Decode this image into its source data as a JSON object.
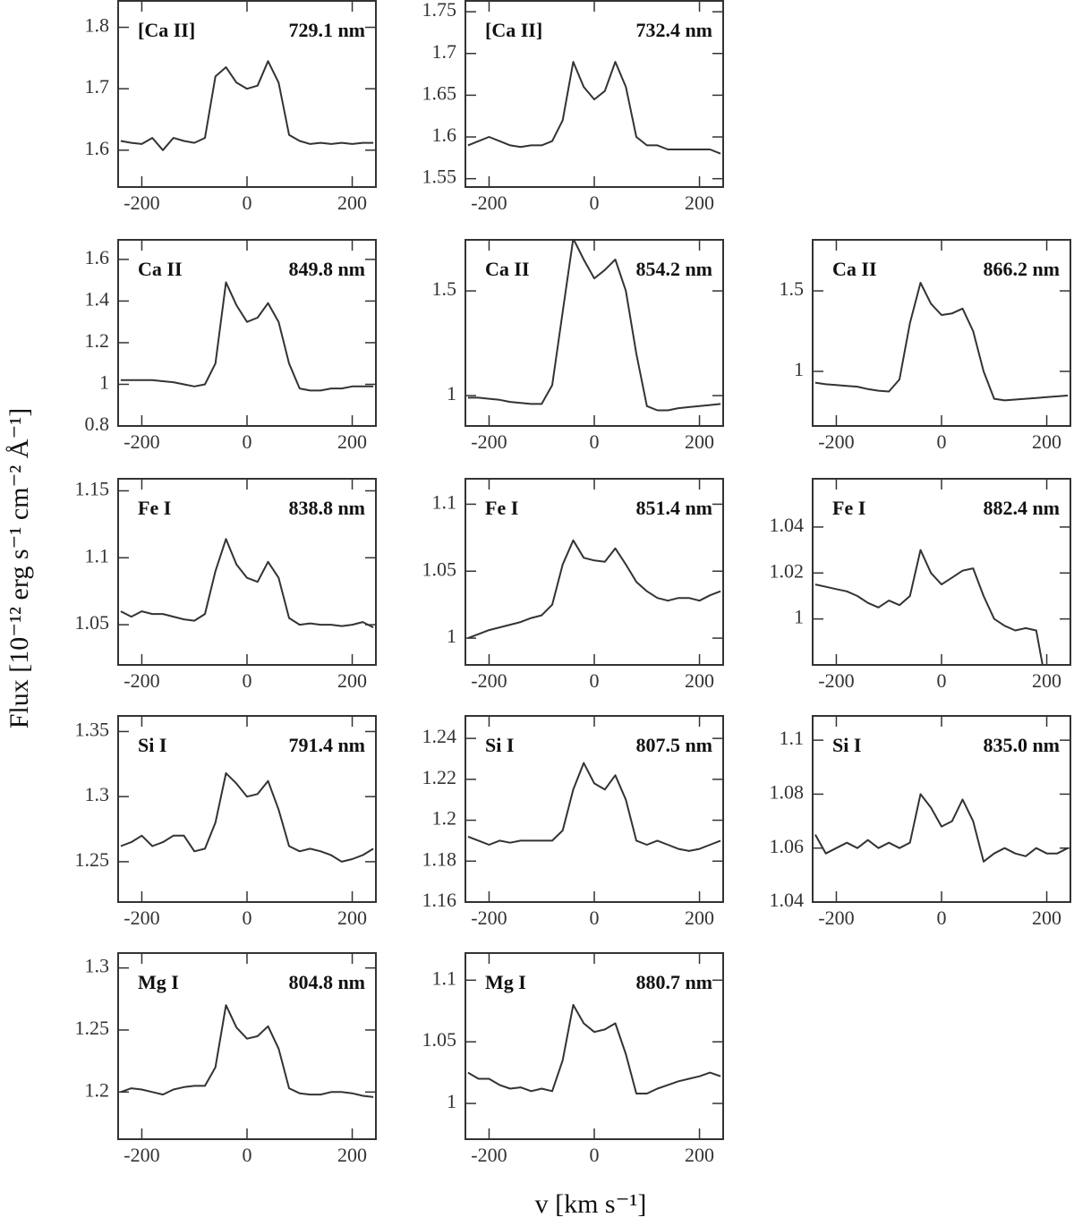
{
  "xlabel": "v [km s⁻¹]",
  "ylabel": "Flux [10⁻¹² erg s⁻¹ cm⁻² Å⁻¹]",
  "chart_data": [
    {
      "type": "line",
      "annotations": [
        "[Ca II]",
        "729.1 nm"
      ],
      "color": "#333333",
      "xlim": [
        -245,
        245
      ],
      "xticks": [
        -200,
        0,
        200
      ],
      "ylim": [
        1.54,
        1.843
      ],
      "yticks": [
        1.6,
        1.7,
        1.8
      ],
      "x": [
        -240,
        -220,
        -200,
        -180,
        -160,
        -140,
        -120,
        -100,
        -80,
        -60,
        -40,
        -20,
        0,
        20,
        40,
        60,
        80,
        100,
        120,
        140,
        160,
        180,
        200,
        220,
        240
      ],
      "values": [
        1.615,
        1.612,
        1.61,
        1.62,
        1.6,
        1.62,
        1.615,
        1.612,
        1.62,
        1.72,
        1.735,
        1.71,
        1.7,
        1.705,
        1.745,
        1.71,
        1.625,
        1.615,
        1.61,
        1.612,
        1.61,
        1.612,
        1.61,
        1.612,
        1.612
      ]
    },
    {
      "type": "line",
      "annotations": [
        "[Ca II]",
        "732.4 nm"
      ],
      "color": "#333333",
      "xlim": [
        -245,
        245
      ],
      "xticks": [
        -200,
        0,
        200
      ],
      "ylim": [
        1.54,
        1.763
      ],
      "yticks": [
        1.55,
        1.6,
        1.65,
        1.7,
        1.75
      ],
      "x": [
        -240,
        -220,
        -200,
        -180,
        -160,
        -140,
        -120,
        -100,
        -80,
        -60,
        -40,
        -20,
        0,
        20,
        40,
        60,
        80,
        100,
        120,
        140,
        160,
        180,
        200,
        220,
        240
      ],
      "values": [
        1.59,
        1.595,
        1.6,
        1.595,
        1.59,
        1.588,
        1.59,
        1.59,
        1.595,
        1.62,
        1.69,
        1.66,
        1.645,
        1.655,
        1.69,
        1.66,
        1.6,
        1.59,
        1.59,
        1.585,
        1.585,
        1.585,
        1.585,
        1.585,
        1.58
      ]
    },
    {
      "type": "line",
      "annotations": [
        "Ca II",
        "849.8 nm"
      ],
      "color": "#333333",
      "xlim": [
        -245,
        245
      ],
      "xticks": [
        -200,
        0,
        200
      ],
      "ylim": [
        0.8,
        1.694
      ],
      "yticks": [
        0.8,
        1,
        1.2,
        1.4,
        1.6
      ],
      "x": [
        -240,
        -220,
        -200,
        -180,
        -160,
        -140,
        -120,
        -100,
        -80,
        -60,
        -40,
        -20,
        0,
        20,
        40,
        60,
        80,
        100,
        120,
        140,
        160,
        180,
        200,
        220,
        240
      ],
      "values": [
        1.02,
        1.02,
        1.02,
        1.02,
        1.015,
        1.01,
        1.0,
        0.99,
        1.0,
        1.1,
        1.49,
        1.38,
        1.3,
        1.32,
        1.39,
        1.3,
        1.1,
        0.98,
        0.97,
        0.97,
        0.98,
        0.98,
        0.99,
        0.99,
        0.99
      ]
    },
    {
      "type": "line",
      "annotations": [
        "Ca II",
        "854.2 nm"
      ],
      "color": "#333333",
      "xlim": [
        -245,
        245
      ],
      "xticks": [
        -200,
        0,
        200
      ],
      "ylim": [
        0.855,
        1.744
      ],
      "yticks": [
        1,
        1.5
      ],
      "x": [
        -240,
        -220,
        -200,
        -180,
        -160,
        -140,
        -120,
        -100,
        -80,
        -60,
        -40,
        -20,
        0,
        20,
        40,
        60,
        80,
        100,
        120,
        140,
        160,
        180,
        200,
        220,
        240
      ],
      "values": [
        0.99,
        0.99,
        0.985,
        0.98,
        0.97,
        0.965,
        0.96,
        0.96,
        1.05,
        1.4,
        1.75,
        1.65,
        1.56,
        1.6,
        1.65,
        1.5,
        1.2,
        0.95,
        0.93,
        0.93,
        0.94,
        0.945,
        0.95,
        0.955,
        0.96
      ]
    },
    {
      "type": "line",
      "annotations": [
        "Ca II",
        "866.2 nm"
      ],
      "color": "#333333",
      "xlim": [
        -245,
        245
      ],
      "xticks": [
        -200,
        0,
        200
      ],
      "ylim": [
        0.661,
        1.817
      ],
      "yticks": [
        1,
        1.5
      ],
      "x": [
        -240,
        -220,
        -200,
        -180,
        -160,
        -140,
        -120,
        -100,
        -80,
        -60,
        -40,
        -20,
        0,
        20,
        40,
        60,
        80,
        100,
        120,
        140,
        160,
        180,
        200,
        220,
        240
      ],
      "values": [
        0.93,
        0.92,
        0.915,
        0.91,
        0.905,
        0.89,
        0.88,
        0.875,
        0.95,
        1.3,
        1.55,
        1.42,
        1.35,
        1.36,
        1.39,
        1.25,
        1.0,
        0.83,
        0.82,
        0.825,
        0.83,
        0.835,
        0.84,
        0.845,
        0.85
      ]
    },
    {
      "type": "line",
      "annotations": [
        "Fe I",
        "838.8 nm"
      ],
      "color": "#333333",
      "xlim": [
        -245,
        245
      ],
      "xticks": [
        -200,
        0,
        200
      ],
      "ylim": [
        1.02,
        1.159
      ],
      "yticks": [
        1.05,
        1.1,
        1.15
      ],
      "x": [
        -240,
        -220,
        -200,
        -180,
        -160,
        -140,
        -120,
        -100,
        -80,
        -60,
        -40,
        -20,
        0,
        20,
        40,
        60,
        80,
        100,
        120,
        140,
        160,
        180,
        200,
        220,
        240
      ],
      "values": [
        1.06,
        1.056,
        1.06,
        1.058,
        1.058,
        1.056,
        1.054,
        1.053,
        1.058,
        1.09,
        1.114,
        1.095,
        1.085,
        1.082,
        1.097,
        1.085,
        1.055,
        1.05,
        1.051,
        1.05,
        1.05,
        1.049,
        1.05,
        1.052,
        1.048
      ]
    },
    {
      "type": "line",
      "annotations": [
        "Fe I",
        "851.4 nm"
      ],
      "color": "#333333",
      "xlim": [
        -245,
        245
      ],
      "xticks": [
        -200,
        0,
        200
      ],
      "ylim": [
        0.98,
        1.119
      ],
      "yticks": [
        1,
        1.05,
        1.1
      ],
      "x": [
        -240,
        -220,
        -200,
        -180,
        -160,
        -140,
        -120,
        -100,
        -80,
        -60,
        -40,
        -20,
        0,
        20,
        40,
        60,
        80,
        100,
        120,
        140,
        160,
        180,
        200,
        220,
        240
      ],
      "values": [
        1.0,
        1.003,
        1.006,
        1.008,
        1.01,
        1.012,
        1.015,
        1.017,
        1.025,
        1.055,
        1.073,
        1.06,
        1.058,
        1.057,
        1.067,
        1.055,
        1.042,
        1.035,
        1.03,
        1.028,
        1.03,
        1.03,
        1.028,
        1.032,
        1.035
      ]
    },
    {
      "type": "line",
      "annotations": [
        "Fe I",
        "882.4 nm"
      ],
      "color": "#333333",
      "xlim": [
        -245,
        245
      ],
      "xticks": [
        -200,
        0,
        200
      ],
      "ylim": [
        0.98,
        1.061
      ],
      "yticks": [
        1,
        1.02,
        1.04
      ],
      "x": [
        -240,
        -220,
        -200,
        -180,
        -160,
        -140,
        -120,
        -100,
        -80,
        -60,
        -40,
        -20,
        0,
        20,
        40,
        60,
        80,
        100,
        120,
        140,
        160,
        180,
        200,
        220,
        240
      ],
      "values": [
        1.015,
        1.014,
        1.013,
        1.012,
        1.01,
        1.007,
        1.005,
        1.008,
        1.006,
        1.01,
        1.03,
        1.02,
        1.015,
        1.018,
        1.021,
        1.022,
        1.01,
        1.0,
        0.997,
        0.995,
        0.996,
        0.995,
        0.97,
        null,
        null
      ]
    },
    {
      "type": "line",
      "annotations": [
        "Si I",
        "791.4 nm"
      ],
      "color": "#333333",
      "xlim": [
        -245,
        245
      ],
      "xticks": [
        -200,
        0,
        200
      ],
      "ylim": [
        1.219,
        1.362
      ],
      "yticks": [
        1.25,
        1.3,
        1.35
      ],
      "x": [
        -240,
        -220,
        -200,
        -180,
        -160,
        -140,
        -120,
        -100,
        -80,
        -60,
        -40,
        -20,
        0,
        20,
        40,
        60,
        80,
        100,
        120,
        140,
        160,
        180,
        200,
        220,
        240
      ],
      "values": [
        1.262,
        1.265,
        1.27,
        1.262,
        1.265,
        1.27,
        1.27,
        1.258,
        1.26,
        1.28,
        1.318,
        1.31,
        1.3,
        1.302,
        1.312,
        1.29,
        1.262,
        1.258,
        1.26,
        1.258,
        1.255,
        1.25,
        1.252,
        1.255,
        1.26
      ]
    },
    {
      "type": "line",
      "annotations": [
        "Si I",
        "807.5 nm"
      ],
      "color": "#333333",
      "xlim": [
        -245,
        245
      ],
      "xticks": [
        -200,
        0,
        200
      ],
      "ylim": [
        1.16,
        1.251
      ],
      "yticks": [
        1.16,
        1.18,
        1.2,
        1.22,
        1.24
      ],
      "x": [
        -240,
        -220,
        -200,
        -180,
        -160,
        -140,
        -120,
        -100,
        -80,
        -60,
        -40,
        -20,
        0,
        20,
        40,
        60,
        80,
        100,
        120,
        140,
        160,
        180,
        200,
        220,
        240
      ],
      "values": [
        1.192,
        1.19,
        1.188,
        1.19,
        1.189,
        1.19,
        1.19,
        1.19,
        1.19,
        1.195,
        1.215,
        1.228,
        1.218,
        1.215,
        1.222,
        1.21,
        1.19,
        1.188,
        1.19,
        1.188,
        1.186,
        1.185,
        1.186,
        1.188,
        1.19
      ]
    },
    {
      "type": "line",
      "annotations": [
        "Si I",
        "835.0 nm"
      ],
      "color": "#333333",
      "xlim": [
        -245,
        245
      ],
      "xticks": [
        -200,
        0,
        200
      ],
      "ylim": [
        1.04,
        1.109
      ],
      "yticks": [
        1.04,
        1.06,
        1.08,
        1.1
      ],
      "x": [
        -240,
        -220,
        -200,
        -180,
        -160,
        -140,
        -120,
        -100,
        -80,
        -60,
        -40,
        -20,
        0,
        20,
        40,
        60,
        80,
        100,
        120,
        140,
        160,
        180,
        200,
        220,
        240
      ],
      "values": [
        1.065,
        1.058,
        1.06,
        1.062,
        1.06,
        1.063,
        1.06,
        1.062,
        1.06,
        1.062,
        1.08,
        1.075,
        1.068,
        1.07,
        1.078,
        1.07,
        1.055,
        1.058,
        1.06,
        1.058,
        1.057,
        1.06,
        1.058,
        1.058,
        1.06
      ]
    },
    {
      "type": "line",
      "annotations": [
        "Mg I",
        "804.8 nm"
      ],
      "color": "#333333",
      "xlim": [
        -245,
        245
      ],
      "xticks": [
        -200,
        0,
        200
      ],
      "ylim": [
        1.162,
        1.312
      ],
      "yticks": [
        1.2,
        1.25,
        1.3
      ],
      "x": [
        -240,
        -220,
        -200,
        -180,
        -160,
        -140,
        -120,
        -100,
        -80,
        -60,
        -40,
        -20,
        0,
        20,
        40,
        60,
        80,
        100,
        120,
        140,
        160,
        180,
        200,
        220,
        240
      ],
      "values": [
        1.2,
        1.203,
        1.202,
        1.2,
        1.198,
        1.202,
        1.204,
        1.205,
        1.205,
        1.22,
        1.27,
        1.252,
        1.243,
        1.245,
        1.253,
        1.235,
        1.203,
        1.199,
        1.198,
        1.198,
        1.2,
        1.2,
        1.199,
        1.197,
        1.196
      ]
    },
    {
      "type": "line",
      "annotations": [
        "Mg I",
        "880.7 nm"
      ],
      "color": "#333333",
      "xlim": [
        -245,
        245
      ],
      "xticks": [
        -200,
        0,
        200
      ],
      "ylim": [
        0.971,
        1.122
      ],
      "yticks": [
        1,
        1.05,
        1.1
      ],
      "x": [
        -240,
        -220,
        -200,
        -180,
        -160,
        -140,
        -120,
        -100,
        -80,
        -60,
        -40,
        -20,
        0,
        20,
        40,
        60,
        80,
        100,
        120,
        140,
        160,
        180,
        200,
        220,
        240
      ],
      "values": [
        1.025,
        1.02,
        1.02,
        1.015,
        1.012,
        1.013,
        1.01,
        1.012,
        1.01,
        1.035,
        1.08,
        1.065,
        1.058,
        1.06,
        1.065,
        1.04,
        1.008,
        1.008,
        1.012,
        1.015,
        1.018,
        1.02,
        1.022,
        1.025,
        1.022
      ]
    }
  ]
}
